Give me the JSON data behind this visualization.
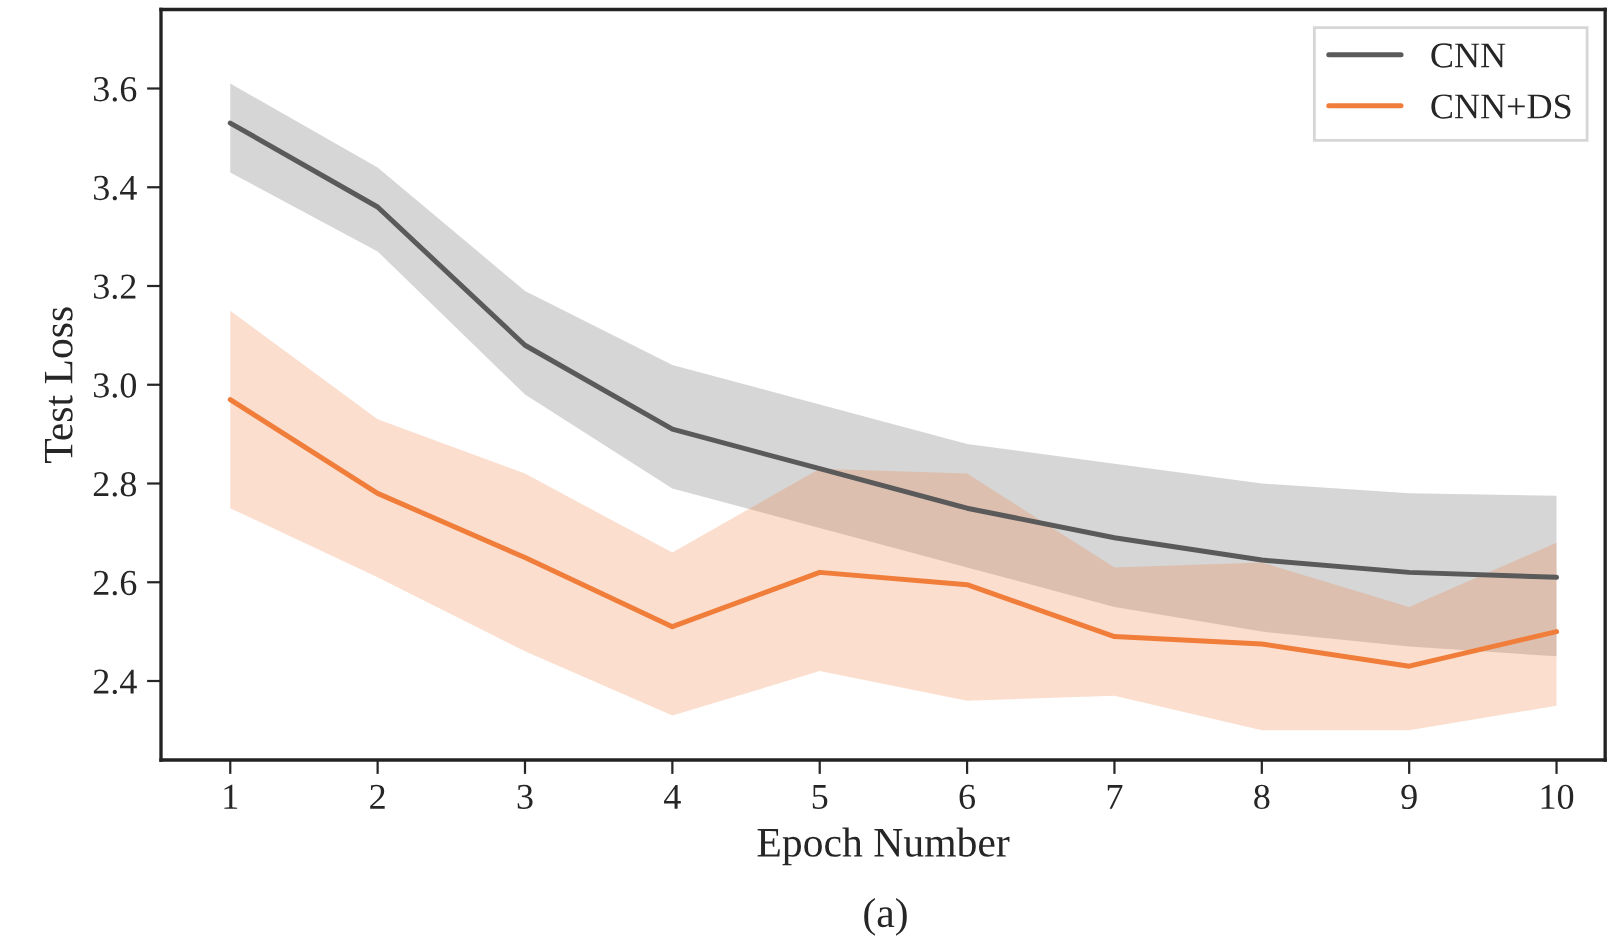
{
  "chart_data": {
    "type": "line",
    "xlabel": "Epoch Number",
    "ylabel": "Test Loss",
    "annotations": [
      "(a)"
    ],
    "x": [
      1,
      2,
      3,
      4,
      5,
      6,
      7,
      8,
      9,
      10
    ],
    "series": [
      {
        "name": "CNN",
        "color": "#5a5a5a",
        "values": [
          3.53,
          3.36,
          3.08,
          2.91,
          2.83,
          2.75,
          2.69,
          2.645,
          2.62,
          2.61
        ],
        "upper": [
          3.61,
          3.44,
          3.19,
          3.04,
          2.96,
          2.88,
          2.84,
          2.8,
          2.78,
          2.775
        ],
        "lower": [
          3.43,
          3.27,
          2.98,
          2.79,
          2.71,
          2.63,
          2.55,
          2.5,
          2.47,
          2.45
        ]
      },
      {
        "name": "CNN+DS",
        "color": "#f07d3a",
        "values": [
          2.97,
          2.78,
          2.65,
          2.51,
          2.62,
          2.595,
          2.49,
          2.475,
          2.43,
          2.5
        ],
        "upper": [
          3.15,
          2.93,
          2.82,
          2.66,
          2.83,
          2.82,
          2.63,
          2.64,
          2.55,
          2.68
        ],
        "lower": [
          2.75,
          2.61,
          2.46,
          2.33,
          2.42,
          2.36,
          2.37,
          2.3,
          2.3,
          2.35
        ]
      }
    ],
    "xlim": [
      0.53,
      10.33
    ],
    "ylim": [
      2.24,
      3.76
    ],
    "xticks": [
      1,
      2,
      3,
      4,
      5,
      6,
      7,
      8,
      9,
      10
    ],
    "yticks": [
      2.4,
      2.6,
      2.8,
      {
        "value": 3,
        "label": "3.0"
      },
      3.2,
      3.4,
      3.6
    ],
    "legend": "top right",
    "grid": false,
    "marker": "none",
    "line_style": "solid"
  }
}
